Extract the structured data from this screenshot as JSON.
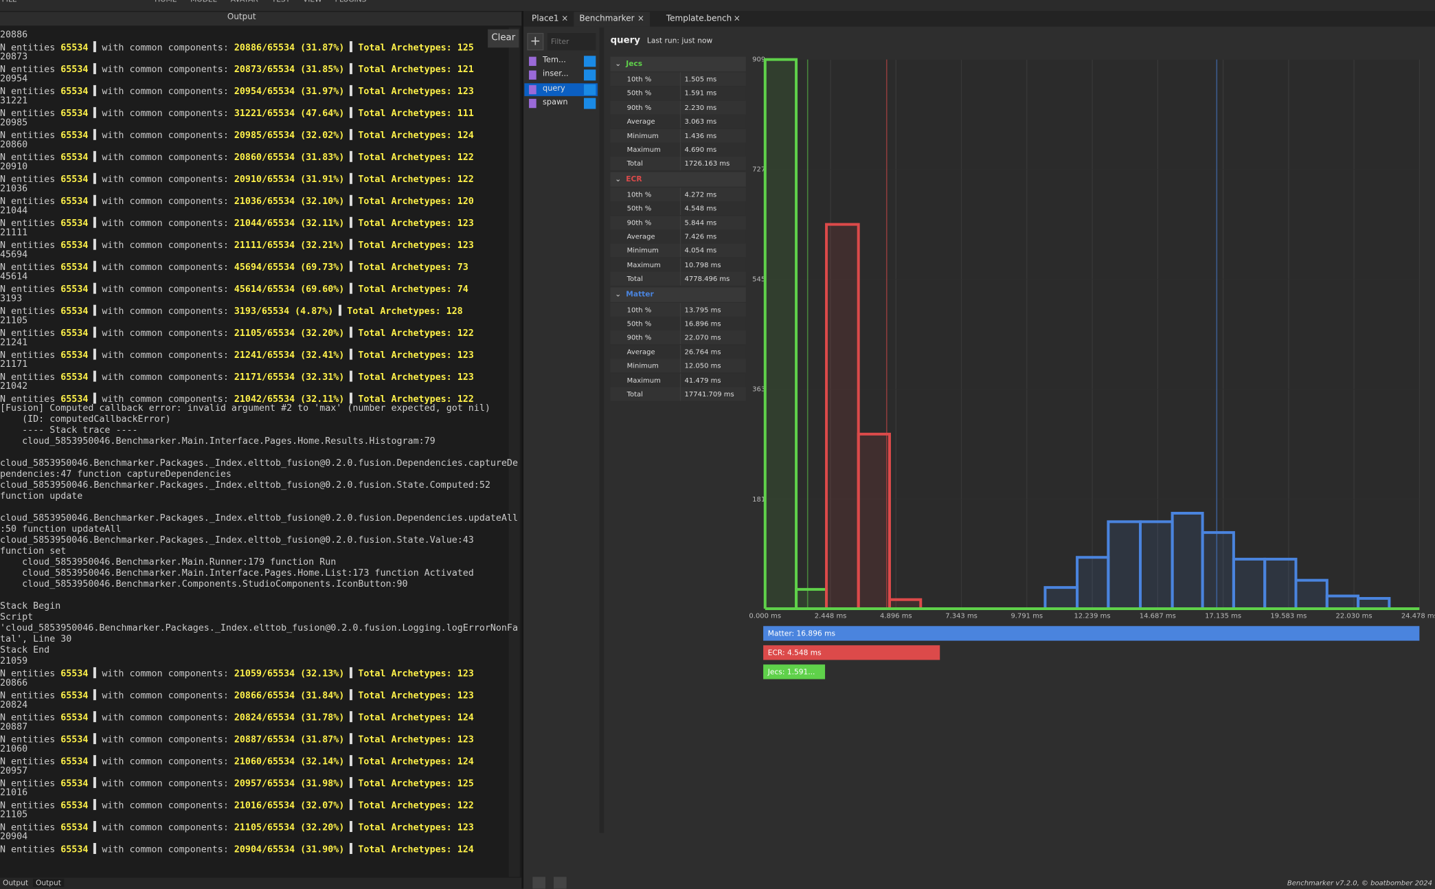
{
  "toolbar": {
    "menu": [
      "FILE",
      "HOME",
      "MODEL",
      "AVATAR",
      "TEST",
      "VIEW",
      "PLUGINS"
    ]
  },
  "output": {
    "title": "Output",
    "clear": "Clear",
    "lines": [
      "20886",
      [
        "N entities",
        "65534",
        "with common components:",
        "20886/65534 (31.87%)",
        "Total Archetypes: 125"
      ],
      "20873",
      [
        "N entities",
        "65534",
        "with common components:",
        "20873/65534 (31.85%)",
        "Total Archetypes: 121"
      ],
      "20954",
      [
        "N entities",
        "65534",
        "with common components:",
        "20954/65534 (31.97%)",
        "Total Archetypes: 123"
      ],
      "31221",
      [
        "N entities",
        "65534",
        "with common components:",
        "31221/65534 (47.64%)",
        "Total Archetypes: 111"
      ],
      "20985",
      [
        "N entities",
        "65534",
        "with common components:",
        "20985/65534 (32.02%)",
        "Total Archetypes: 124"
      ],
      "20860",
      [
        "N entities",
        "65534",
        "with common components:",
        "20860/65534 (31.83%)",
        "Total Archetypes: 122"
      ],
      "20910",
      [
        "N entities",
        "65534",
        "with common components:",
        "20910/65534 (31.91%)",
        "Total Archetypes: 122"
      ],
      "21036",
      [
        "N entities",
        "65534",
        "with common components:",
        "21036/65534 (32.10%)",
        "Total Archetypes: 120"
      ],
      "21044",
      [
        "N entities",
        "65534",
        "with common components:",
        "21044/65534 (32.11%)",
        "Total Archetypes: 123"
      ],
      "21111",
      [
        "N entities",
        "65534",
        "with common components:",
        "21111/65534 (32.21%)",
        "Total Archetypes: 123"
      ],
      "45694",
      [
        "N entities",
        "65534",
        "with common components:",
        "45694/65534 (69.73%)",
        "Total Archetypes: 73"
      ],
      "45614",
      [
        "N entities",
        "65534",
        "with common components:",
        "45614/65534 (69.60%)",
        "Total Archetypes: 74"
      ],
      "3193",
      [
        "N entities",
        "65534",
        "with common components:",
        "3193/65534 (4.87%)",
        "Total Archetypes: 128"
      ],
      "21105",
      [
        "N entities",
        "65534",
        "with common components:",
        "21105/65534 (32.20%)",
        "Total Archetypes: 122"
      ],
      "21241",
      [
        "N entities",
        "65534",
        "with common components:",
        "21241/65534 (32.41%)",
        "Total Archetypes: 123"
      ],
      "21171",
      [
        "N entities",
        "65534",
        "with common components:",
        "21171/65534 (32.31%)",
        "Total Archetypes: 123"
      ],
      "21042",
      [
        "N entities",
        "65534",
        "with common components:",
        "21042/65534 (32.11%)",
        "Total Archetypes: 122"
      ],
      "[Fusion] Computed callback error: invalid argument #2 to 'max' (number expected, got nil)",
      "    (ID: computedCallbackError)",
      "    ---- Stack trace ----",
      "    cloud_5853950046.Benchmarker.Main.Interface.Pages.Home.Results.Histogram:79",
      null,
      "cloud_5853950046.Benchmarker.Packages._Index.elttob_fusion@0.2.0.fusion.Dependencies.captureDe",
      "pendencies:47 function captureDependencies",
      "cloud_5853950046.Benchmarker.Packages._Index.elttob_fusion@0.2.0.fusion.State.Computed:52",
      "function update",
      null,
      "cloud_5853950046.Benchmarker.Packages._Index.elttob_fusion@0.2.0.fusion.Dependencies.updateAll",
      ":50 function updateAll",
      "cloud_5853950046.Benchmarker.Packages._Index.elttob_fusion@0.2.0.fusion.State.Value:43",
      "function set",
      "    cloud_5853950046.Benchmarker.Main.Runner:179 function Run",
      "    cloud_5853950046.Benchmarker.Main.Interface.Pages.Home.List:173 function Activated",
      "    cloud_5853950046.Benchmarker.Components.StudioComponents.IconButton:90",
      null,
      "Stack Begin",
      "Script",
      "'cloud_5853950046.Benchmarker.Packages._Index.elttob_fusion@0.2.0.fusion.Logging.logErrorNonFa",
      "tal', Line 30",
      "Stack End",
      "21059",
      [
        "N entities",
        "65534",
        "with common components:",
        "21059/65534 (32.13%)",
        "Total Archetypes: 123"
      ],
      "20866",
      [
        "N entities",
        "65534",
        "with common components:",
        "20866/65534 (31.84%)",
        "Total Archetypes: 123"
      ],
      "20824",
      [
        "N entities",
        "65534",
        "with common components:",
        "20824/65534 (31.78%)",
        "Total Archetypes: 124"
      ],
      "20887",
      [
        "N entities",
        "65534",
        "with common components:",
        "20887/65534 (31.87%)",
        "Total Archetypes: 123"
      ],
      "21060",
      [
        "N entities",
        "65534",
        "with common components:",
        "21060/65534 (32.14%)",
        "Total Archetypes: 124"
      ],
      "20957",
      [
        "N entities",
        "65534",
        "with common components:",
        "20957/65534 (31.98%)",
        "Total Archetypes: 125"
      ],
      "21016",
      [
        "N entities",
        "65534",
        "with common components:",
        "21016/65534 (32.07%)",
        "Total Archetypes: 122"
      ],
      "21105",
      [
        "N entities",
        "65534",
        "with common components:",
        "21105/65534 (32.20%)",
        "Total Archetypes: 123"
      ],
      "20904",
      [
        "N entities",
        "65534",
        "with common components:",
        "20904/65534 (31.90%)",
        "Total Archetypes: 124"
      ]
    ],
    "bottom_tabs": [
      "Output",
      "Output"
    ]
  },
  "tabs": [
    "Place1",
    "Benchmarker",
    "Template.bench"
  ],
  "sidebar": {
    "filter": "Filter",
    "items": [
      "Tem...",
      "inser...",
      "query",
      "spawn"
    ],
    "selected": 2
  },
  "header": {
    "title": "query",
    "last_run": "Last run: just now"
  },
  "stats": {
    "groups": [
      {
        "name": "Jecs",
        "color": "#5fd14a",
        "rows": [
          [
            "10th %",
            "1.505 ms"
          ],
          [
            "50th %",
            "1.591 ms"
          ],
          [
            "90th %",
            "2.230 ms"
          ],
          [
            "Average",
            "3.063 ms"
          ],
          [
            "Minimum",
            "1.436 ms"
          ],
          [
            "Maximum",
            "4.690 ms"
          ],
          [
            "Total",
            "1726.163 ms"
          ]
        ]
      },
      {
        "name": "ECR",
        "color": "#dc4a4a",
        "rows": [
          [
            "10th %",
            "4.272 ms"
          ],
          [
            "50th %",
            "4.548 ms"
          ],
          [
            "90th %",
            "5.844 ms"
          ],
          [
            "Average",
            "7.426 ms"
          ],
          [
            "Minimum",
            "4.054 ms"
          ],
          [
            "Maximum",
            "10.798 ms"
          ],
          [
            "Total",
            "4778.496 ms"
          ]
        ]
      },
      {
        "name": "Matter",
        "color": "#4a84de",
        "rows": [
          [
            "10th %",
            "13.795 ms"
          ],
          [
            "50th %",
            "16.896 ms"
          ],
          [
            "90th %",
            "22.070 ms"
          ],
          [
            "Average",
            "26.764 ms"
          ],
          [
            "Minimum",
            "12.050 ms"
          ],
          [
            "Maximum",
            "41.479 ms"
          ],
          [
            "Total",
            "17741.709 ms"
          ]
        ]
      }
    ]
  },
  "chart_data": {
    "type": "histogram",
    "xlim": [
      0,
      24.478
    ],
    "ylim": [
      0,
      909
    ],
    "xticks": [
      {
        "value": 0,
        "label": "0.000 ms"
      },
      {
        "value": 2.448,
        "label": "2.448 ms"
      },
      {
        "value": 4.896,
        "label": "4.896 ms"
      },
      {
        "value": 7.343,
        "label": "7.343 ms"
      },
      {
        "value": 9.791,
        "label": "9.791 ms"
      },
      {
        "value": 12.239,
        "label": "12.239 ms"
      },
      {
        "value": 14.687,
        "label": "14.687 ms"
      },
      {
        "value": 17.135,
        "label": "17.135 ms"
      },
      {
        "value": 19.583,
        "label": "19.583 ms"
      },
      {
        "value": 22.03,
        "label": "22.030 ms"
      },
      {
        "value": 24.478,
        "label": "24.478 ms"
      }
    ],
    "yticks": [
      181,
      363,
      545,
      727,
      909
    ],
    "grid": true,
    "series": [
      {
        "name": "Jecs",
        "color": "#5fd14a",
        "bins": [
          0,
          1.164,
          2.294
        ],
        "values": [
          909,
          32
        ],
        "median": 1.591
      },
      {
        "name": "ECR",
        "color": "#dc4a4a",
        "bins": [
          2.294,
          3.492,
          4.656,
          5.82
        ],
        "values": [
          636,
          289,
          15
        ],
        "median": 4.548
      },
      {
        "name": "Matter",
        "color": "#4a84de",
        "bins": [
          10.476,
          11.674,
          12.838,
          14.036,
          15.234,
          16.364,
          17.528,
          18.692,
          19.856,
          21.02,
          22.184,
          23.348
        ],
        "values": [
          35,
          85,
          144,
          144,
          158,
          126,
          82,
          82,
          47,
          21,
          17
        ],
        "median": 16.896
      }
    ],
    "summary": {
      "values": [
        16.896,
        4.548,
        1.591
      ],
      "value_labels": [
        "Matter: 16.896 ms",
        "ECR: 4.548 ms",
        "Jecs: 1.591..."
      ],
      "colors": [
        "#4a84de",
        "#dc4a4a",
        "#5fd14a"
      ]
    }
  },
  "footer": "Benchmarker v7.2.0, © boatbomber 2024"
}
